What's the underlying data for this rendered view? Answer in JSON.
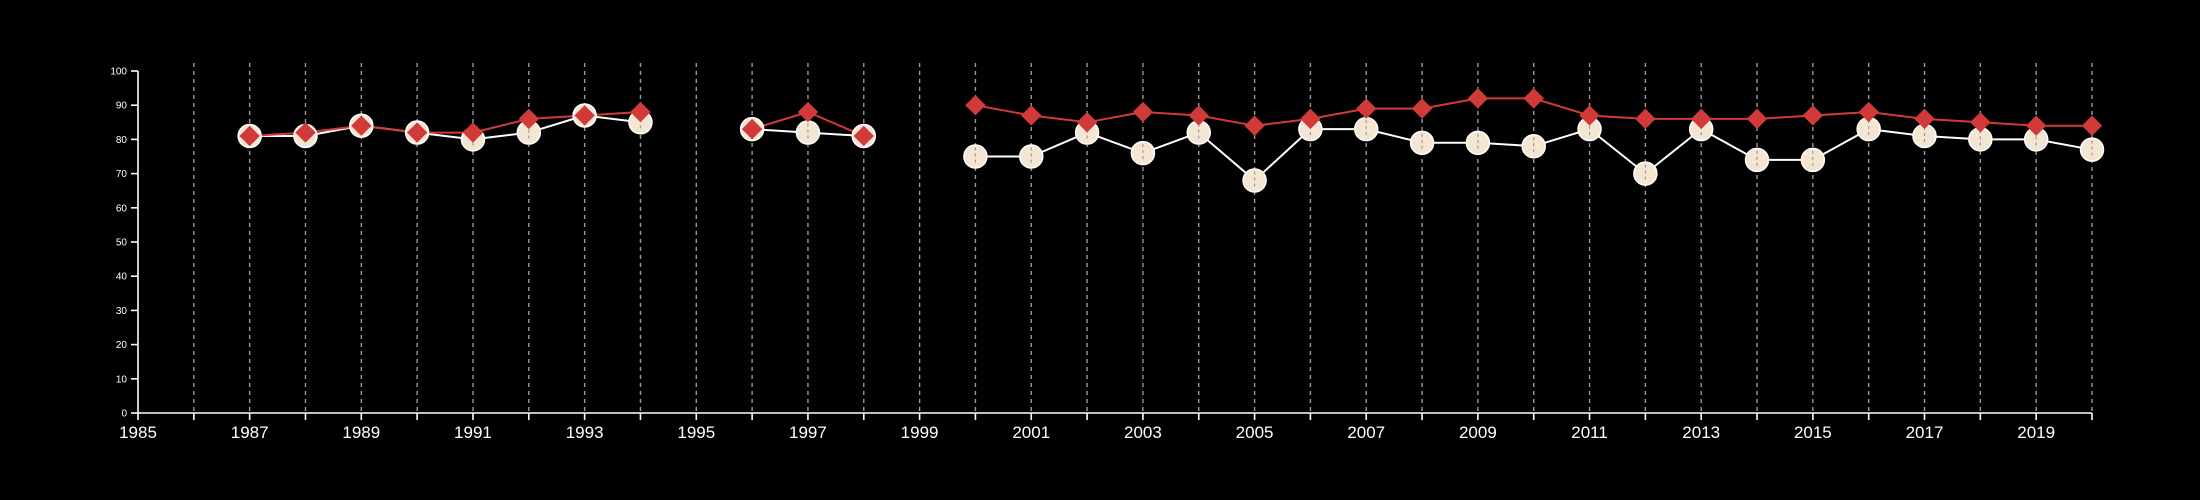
{
  "chart_data": {
    "type": "line",
    "x_ticks": [
      "1985",
      "1987",
      "1989",
      "1991",
      "1993",
      "1995",
      "1997",
      "1999",
      "2001",
      "2003",
      "2005",
      "2007",
      "2009",
      "2011",
      "2013",
      "2015",
      "2017",
      "2019"
    ],
    "y_ticks": [
      "0",
      "10",
      "20",
      "30",
      "40",
      "50",
      "60",
      "70",
      "80",
      "90",
      "100"
    ],
    "xlim": [
      1985,
      2020
    ],
    "ylim": [
      0,
      100
    ],
    "grid": "vertical dashed lines at each year",
    "series": [
      {
        "marker": "circle",
        "color": "#ffffff",
        "fill": "#f5e6d3",
        "points": [
          {
            "x": 1987,
            "y": 81
          },
          {
            "x": 1988,
            "y": 81
          },
          {
            "x": 1989,
            "y": 84
          },
          {
            "x": 1990,
            "y": 82
          },
          {
            "x": 1991,
            "y": 80
          },
          {
            "x": 1992,
            "y": 82
          },
          {
            "x": 1993,
            "y": 87
          },
          {
            "x": 1994,
            "y": 85
          },
          {
            "x": 1996,
            "y": 83
          },
          {
            "x": 1997,
            "y": 82
          },
          {
            "x": 1998,
            "y": 81
          },
          {
            "x": 2000,
            "y": 75
          },
          {
            "x": 2001,
            "y": 75
          },
          {
            "x": 2002,
            "y": 82
          },
          {
            "x": 2003,
            "y": 76
          },
          {
            "x": 2004,
            "y": 82
          },
          {
            "x": 2005,
            "y": 68
          },
          {
            "x": 2006,
            "y": 83
          },
          {
            "x": 2007,
            "y": 83
          },
          {
            "x": 2008,
            "y": 79
          },
          {
            "x": 2009,
            "y": 79
          },
          {
            "x": 2010,
            "y": 78
          },
          {
            "x": 2011,
            "y": 83
          },
          {
            "x": 2012,
            "y": 70
          },
          {
            "x": 2013,
            "y": 83
          },
          {
            "x": 2014,
            "y": 74
          },
          {
            "x": 2015,
            "y": 74
          },
          {
            "x": 2016,
            "y": 83
          },
          {
            "x": 2017,
            "y": 81
          },
          {
            "x": 2018,
            "y": 80
          },
          {
            "x": 2019,
            "y": 80
          },
          {
            "x": 2020,
            "y": 77
          }
        ]
      },
      {
        "marker": "diamond",
        "color": "#d23a3a",
        "points": [
          {
            "x": 1987,
            "y": 81
          },
          {
            "x": 1988,
            "y": 82
          },
          {
            "x": 1989,
            "y": 84
          },
          {
            "x": 1990,
            "y": 82
          },
          {
            "x": 1991,
            "y": 82
          },
          {
            "x": 1992,
            "y": 86
          },
          {
            "x": 1993,
            "y": 87
          },
          {
            "x": 1994,
            "y": 88
          },
          {
            "x": 1996,
            "y": 83
          },
          {
            "x": 1997,
            "y": 88
          },
          {
            "x": 1998,
            "y": 81
          },
          {
            "x": 2000,
            "y": 90
          },
          {
            "x": 2001,
            "y": 87
          },
          {
            "x": 2002,
            "y": 85
          },
          {
            "x": 2003,
            "y": 88
          },
          {
            "x": 2004,
            "y": 87
          },
          {
            "x": 2005,
            "y": 84
          },
          {
            "x": 2006,
            "y": 86
          },
          {
            "x": 2007,
            "y": 89
          },
          {
            "x": 2008,
            "y": 89
          },
          {
            "x": 2009,
            "y": 92
          },
          {
            "x": 2010,
            "y": 92
          },
          {
            "x": 2011,
            "y": 87
          },
          {
            "x": 2012,
            "y": 86
          },
          {
            "x": 2013,
            "y": 86
          },
          {
            "x": 2014,
            "y": 86
          },
          {
            "x": 2015,
            "y": 87
          },
          {
            "x": 2016,
            "y": 88
          },
          {
            "x": 2017,
            "y": 86
          },
          {
            "x": 2018,
            "y": 85
          },
          {
            "x": 2019,
            "y": 84
          },
          {
            "x": 2020,
            "y": 84
          }
        ]
      }
    ]
  }
}
